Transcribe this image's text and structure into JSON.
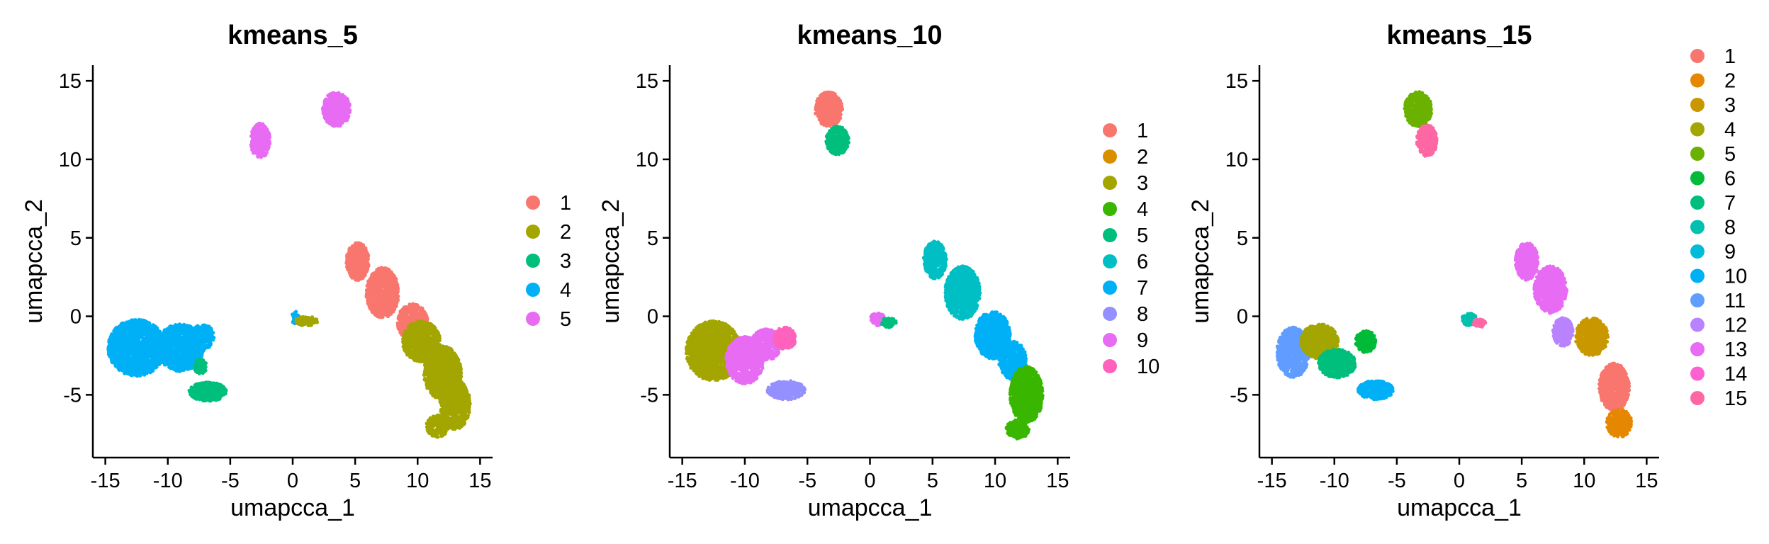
{
  "chart_data": [
    {
      "type": "scatter",
      "title": "kmeans_5",
      "xlabel": "umapcca_1",
      "ylabel": "umapcca_2",
      "xlim": [
        -16,
        16
      ],
      "ylim": [
        -9,
        16
      ],
      "xticks": [
        "-15",
        "-10",
        "-5",
        "0",
        "5",
        "10",
        "15"
      ],
      "yticks": [
        "-5",
        "0",
        "5",
        "10",
        "15"
      ],
      "grid": false,
      "legend_position": "right",
      "legend": [
        "1",
        "2",
        "3",
        "4",
        "5"
      ],
      "colors": [
        "#F8766D",
        "#A3A500",
        "#00BF7D",
        "#00B0F6",
        "#E76BF3"
      ],
      "groups": [
        {
          "cx": 3.5,
          "cy": 13.2,
          "rx": 1.1,
          "ry": 1.1,
          "c": 5
        },
        {
          "cx": -2.6,
          "cy": 11.2,
          "rx": 0.8,
          "ry": 1.1,
          "c": 5
        },
        {
          "cx": 5.2,
          "cy": 3.5,
          "rx": 0.9,
          "ry": 1.2,
          "c": 1
        },
        {
          "cx": 7.2,
          "cy": 1.5,
          "rx": 1.3,
          "ry": 1.6,
          "c": 1
        },
        {
          "cx": 9.6,
          "cy": -0.4,
          "rx": 1.2,
          "ry": 1.2,
          "c": 1
        },
        {
          "cx": 10.3,
          "cy": -1.6,
          "rx": 1.5,
          "ry": 1.3,
          "c": 2
        },
        {
          "cx": 12.0,
          "cy": -3.6,
          "rx": 1.5,
          "ry": 1.7,
          "c": 2
        },
        {
          "cx": 13.0,
          "cy": -5.6,
          "rx": 1.2,
          "ry": 1.6,
          "c": 2
        },
        {
          "cx": 11.6,
          "cy": -7.0,
          "rx": 0.9,
          "ry": 0.7,
          "c": 2
        },
        {
          "cx": -12.5,
          "cy": -2.0,
          "rx": 2.3,
          "ry": 1.8,
          "c": 4
        },
        {
          "cx": -9.0,
          "cy": -2.0,
          "rx": 1.9,
          "ry": 1.5,
          "c": 4
        },
        {
          "cx": -7.2,
          "cy": -1.3,
          "rx": 0.9,
          "ry": 0.8,
          "c": 4
        },
        {
          "cx": -6.8,
          "cy": -4.8,
          "rx": 1.5,
          "ry": 0.6,
          "c": 3
        },
        {
          "cx": -7.4,
          "cy": -3.2,
          "rx": 0.5,
          "ry": 0.5,
          "c": 3
        },
        {
          "cx": 0.2,
          "cy": -0.1,
          "rx": 0.3,
          "ry": 0.4,
          "c": 4
        },
        {
          "cx": 1.1,
          "cy": -0.3,
          "rx": 0.9,
          "ry": 0.3,
          "c": 2
        }
      ]
    },
    {
      "type": "scatter",
      "title": "kmeans_10",
      "xlabel": "umapcca_1",
      "ylabel": "umapcca_2",
      "xlim": [
        -16,
        16
      ],
      "ylim": [
        -9,
        16
      ],
      "xticks": [
        "-15",
        "-10",
        "-5",
        "0",
        "5",
        "10",
        "15"
      ],
      "yticks": [
        "-5",
        "0",
        "5",
        "10",
        "15"
      ],
      "grid": false,
      "legend_position": "right",
      "legend": [
        "1",
        "2",
        "3",
        "4",
        "5",
        "6",
        "7",
        "8",
        "9",
        "10"
      ],
      "colors": [
        "#F8766D",
        "#D89000",
        "#A3A500",
        "#39B600",
        "#00BF7D",
        "#00BFC4",
        "#00B0F6",
        "#9590FF",
        "#E76BF3",
        "#FF62BC"
      ],
      "groups": [
        {
          "cx": -3.3,
          "cy": 13.2,
          "rx": 1.1,
          "ry": 1.1,
          "c": 1
        },
        {
          "cx": -2.6,
          "cy": 11.2,
          "rx": 0.9,
          "ry": 0.9,
          "c": 5
        },
        {
          "cx": 5.2,
          "cy": 3.6,
          "rx": 0.9,
          "ry": 1.2,
          "c": 6
        },
        {
          "cx": 7.4,
          "cy": 1.5,
          "rx": 1.4,
          "ry": 1.7,
          "c": 6
        },
        {
          "cx": 9.8,
          "cy": -1.2,
          "rx": 1.4,
          "ry": 1.5,
          "c": 7
        },
        {
          "cx": 11.4,
          "cy": -2.8,
          "rx": 1.1,
          "ry": 1.2,
          "c": 7
        },
        {
          "cx": 12.5,
          "cy": -5.0,
          "rx": 1.3,
          "ry": 1.8,
          "c": 4
        },
        {
          "cx": 11.8,
          "cy": -7.2,
          "rx": 0.9,
          "ry": 0.6,
          "c": 4
        },
        {
          "cx": -12.5,
          "cy": -2.2,
          "rx": 2.2,
          "ry": 1.9,
          "c": 3
        },
        {
          "cx": -10.0,
          "cy": -2.8,
          "rx": 1.5,
          "ry": 1.5,
          "c": 9
        },
        {
          "cx": -8.3,
          "cy": -1.8,
          "rx": 1.2,
          "ry": 1.0,
          "c": 9
        },
        {
          "cx": -6.8,
          "cy": -1.4,
          "rx": 0.9,
          "ry": 0.7,
          "c": 10
        },
        {
          "cx": -6.7,
          "cy": -4.7,
          "rx": 1.5,
          "ry": 0.6,
          "c": 8
        },
        {
          "cx": 0.6,
          "cy": -0.2,
          "rx": 0.6,
          "ry": 0.4,
          "c": 9
        },
        {
          "cx": 1.5,
          "cy": -0.4,
          "rx": 0.6,
          "ry": 0.3,
          "c": 5
        }
      ]
    },
    {
      "type": "scatter",
      "title": "kmeans_15",
      "xlabel": "umapcca_1",
      "ylabel": "umapcca_2",
      "xlim": [
        -16,
        16
      ],
      "ylim": [
        -9,
        16
      ],
      "xticks": [
        "-15",
        "-10",
        "-5",
        "0",
        "5",
        "10",
        "15"
      ],
      "yticks": [
        "-5",
        "0",
        "5",
        "10",
        "15"
      ],
      "grid": false,
      "legend_position": "right",
      "legend": [
        "1",
        "2",
        "3",
        "4",
        "5",
        "6",
        "7",
        "8",
        "9",
        "10",
        "11",
        "12",
        "13",
        "14",
        "15"
      ],
      "colors": [
        "#F8766D",
        "#E58700",
        "#C99800",
        "#A3A500",
        "#6BB100",
        "#00BA38",
        "#00BF7D",
        "#00C0AF",
        "#00BCD8",
        "#00B0F6",
        "#619CFF",
        "#B983FF",
        "#E76BF3",
        "#FD61D1",
        "#FF67A4"
      ],
      "groups": [
        {
          "cx": -3.3,
          "cy": 13.2,
          "rx": 1.1,
          "ry": 1.1,
          "c": 5
        },
        {
          "cx": -2.6,
          "cy": 11.2,
          "rx": 0.8,
          "ry": 1.0,
          "c": 15
        },
        {
          "cx": 5.4,
          "cy": 3.5,
          "rx": 0.9,
          "ry": 1.2,
          "c": 13
        },
        {
          "cx": 7.3,
          "cy": 1.7,
          "rx": 1.3,
          "ry": 1.5,
          "c": 13
        },
        {
          "cx": 8.3,
          "cy": -1.0,
          "rx": 0.8,
          "ry": 0.9,
          "c": 12
        },
        {
          "cx": 10.6,
          "cy": -1.3,
          "rx": 1.3,
          "ry": 1.2,
          "c": 3
        },
        {
          "cx": 12.4,
          "cy": -4.5,
          "rx": 1.2,
          "ry": 1.5,
          "c": 1
        },
        {
          "cx": 12.8,
          "cy": -6.8,
          "rx": 1.0,
          "ry": 0.9,
          "c": 2
        },
        {
          "cx": -13.3,
          "cy": -2.3,
          "rx": 1.3,
          "ry": 1.6,
          "c": 11
        },
        {
          "cx": -11.2,
          "cy": -1.6,
          "rx": 1.5,
          "ry": 1.1,
          "c": 4
        },
        {
          "cx": -9.8,
          "cy": -3.0,
          "rx": 1.5,
          "ry": 0.9,
          "c": 7
        },
        {
          "cx": -7.5,
          "cy": -1.6,
          "rx": 0.8,
          "ry": 0.7,
          "c": 6
        },
        {
          "cx": -6.7,
          "cy": -4.7,
          "rx": 1.4,
          "ry": 0.6,
          "c": 10
        },
        {
          "cx": 0.8,
          "cy": -0.2,
          "rx": 0.6,
          "ry": 0.4,
          "c": 8
        },
        {
          "cx": 1.6,
          "cy": -0.4,
          "rx": 0.5,
          "ry": 0.3,
          "c": 15
        }
      ]
    }
  ]
}
